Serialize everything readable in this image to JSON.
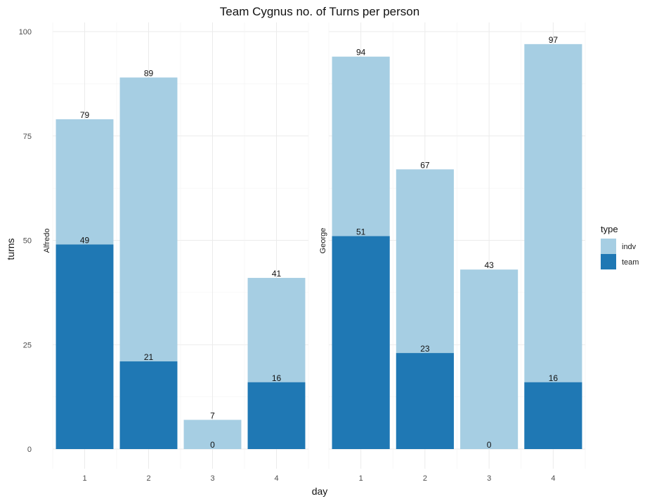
{
  "chart_data": {
    "type": "bar",
    "stacked": false,
    "title": "Team Cygnus no. of Turns per person",
    "xlabel": "day",
    "ylabel": "turns",
    "ylim": [
      0,
      100
    ],
    "yticks": [
      0,
      25,
      50,
      75,
      100
    ],
    "categories": [
      "1",
      "2",
      "3",
      "4"
    ],
    "grid": true,
    "legend": {
      "title": "type",
      "position": "right",
      "entries": [
        {
          "name": "indv",
          "color": "#a6cee3"
        },
        {
          "name": "team",
          "color": "#1f78b4"
        }
      ]
    },
    "facets": [
      {
        "name": "Alfredo",
        "series": [
          {
            "name": "indv",
            "values": [
              79,
              89,
              7,
              41
            ]
          },
          {
            "name": "team",
            "values": [
              49,
              21,
              0,
              16
            ]
          }
        ]
      },
      {
        "name": "George",
        "series": [
          {
            "name": "indv",
            "values": [
              94,
              67,
              43,
              97
            ]
          },
          {
            "name": "team",
            "values": [
              51,
              23,
              0,
              16
            ]
          }
        ]
      }
    ]
  }
}
